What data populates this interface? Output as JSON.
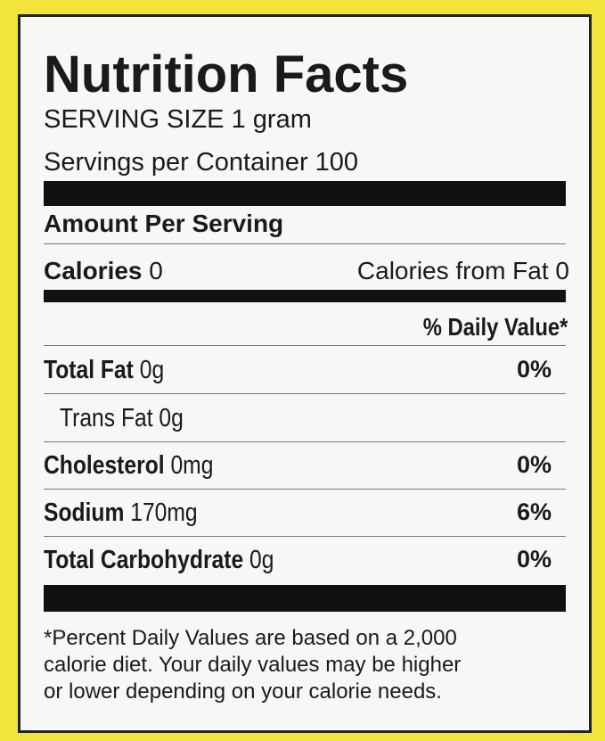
{
  "title": "Nutrition Facts",
  "serving_size": {
    "label": "SERVING SIZE",
    "value": "1 gram"
  },
  "servings": {
    "label": "Servings per Container",
    "value": "100"
  },
  "amount_per_serving": "Amount Per Serving",
  "calories": {
    "label": "Calories",
    "value": "0"
  },
  "calories_from_fat": {
    "label": "Calories from Fat",
    "value": "0"
  },
  "daily_value_header": "% Daily Value*",
  "rows": [
    {
      "name": "Total Fat",
      "amount": "0g",
      "percent": "0%"
    },
    {
      "name": "Trans Fat",
      "amount": "0g"
    },
    {
      "name": "Cholesterol",
      "amount": "0mg",
      "percent": "0%"
    },
    {
      "name": "Sodium",
      "amount": "170mg",
      "percent": "6%"
    },
    {
      "name": "Total Carbohydrate",
      "amount": "0g",
      "percent": "0%"
    }
  ],
  "footnote": [
    "*Percent Daily Values are based on a 2,000",
    "calorie diet. Your daily values may be higher",
    "or lower depending on your calorie needs."
  ]
}
